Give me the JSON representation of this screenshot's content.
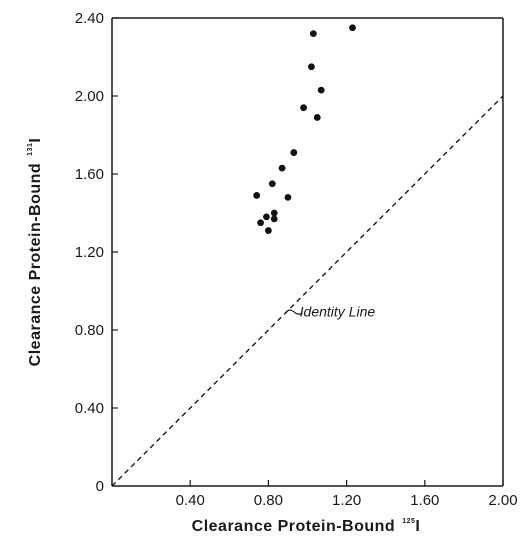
{
  "chart_data": {
    "type": "scatter",
    "title": "",
    "xlabel": "Clearance Protein-Bound",
    "xlabel_isotope": "125",
    "xlabel_element": "I",
    "ylabel": "Clearance Protein-Bound",
    "ylabel_isotope": "131",
    "ylabel_element": "I",
    "xlim": [
      0,
      2.0
    ],
    "ylim": [
      0,
      2.4
    ],
    "x_ticks": [
      {
        "value": 0.4,
        "label": "0.40"
      },
      {
        "value": 0.8,
        "label": "0.80"
      },
      {
        "value": 1.2,
        "label": "1.20"
      },
      {
        "value": 1.6,
        "label": "1.60"
      },
      {
        "value": 2.0,
        "label": "2.00"
      }
    ],
    "y_ticks": [
      {
        "value": 0,
        "label": "0"
      },
      {
        "value": 0.4,
        "label": "0.40"
      },
      {
        "value": 0.8,
        "label": "0.80"
      },
      {
        "value": 1.2,
        "label": "1.20"
      },
      {
        "value": 1.6,
        "label": "1.60"
      },
      {
        "value": 2.0,
        "label": "2.00"
      },
      {
        "value": 2.4,
        "label": "2.40"
      }
    ],
    "grid": false,
    "points": [
      {
        "x": 0.74,
        "y": 1.49
      },
      {
        "x": 0.76,
        "y": 1.35
      },
      {
        "x": 0.79,
        "y": 1.38
      },
      {
        "x": 0.8,
        "y": 1.31
      },
      {
        "x": 0.82,
        "y": 1.55
      },
      {
        "x": 0.83,
        "y": 1.4
      },
      {
        "x": 0.83,
        "y": 1.37
      },
      {
        "x": 0.87,
        "y": 1.63
      },
      {
        "x": 0.9,
        "y": 1.48
      },
      {
        "x": 0.93,
        "y": 1.71
      },
      {
        "x": 0.98,
        "y": 1.94
      },
      {
        "x": 1.02,
        "y": 2.15
      },
      {
        "x": 1.03,
        "y": 2.32
      },
      {
        "x": 1.05,
        "y": 1.89
      },
      {
        "x": 1.07,
        "y": 2.03
      },
      {
        "x": 1.23,
        "y": 2.35
      }
    ],
    "reference_line": {
      "from": [
        0,
        0
      ],
      "to": [
        2.0,
        2.0
      ],
      "style": "dashed"
    },
    "annotation": {
      "text": "Identity Line",
      "x": 0.96,
      "y": 0.87
    }
  }
}
